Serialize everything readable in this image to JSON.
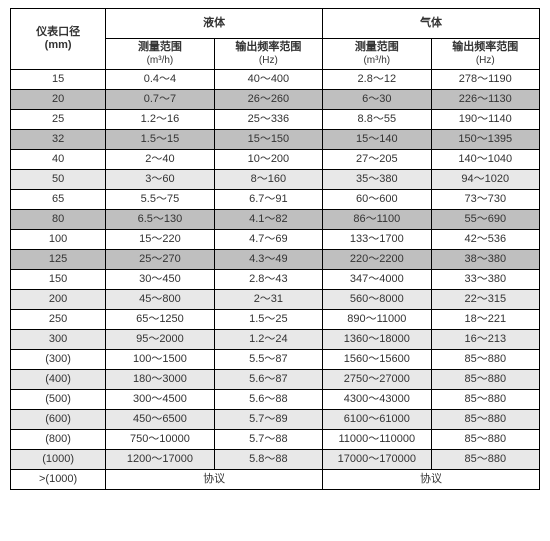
{
  "colors": {
    "bg_white": "#ffffff",
    "bg_light": "#e8e8e8",
    "bg_dark": "#bfbfbf",
    "border": "#000000",
    "text": "#333333"
  },
  "header": {
    "col0_line1": "仪表口径",
    "col0_line2": "(mm)",
    "group_liquid": "液体",
    "group_gas": "气体",
    "meas_line1": "测量范围",
    "meas_line2": "(m³/h)",
    "freq_line1": "输出频率范围",
    "freq_line2": "(Hz)"
  },
  "rows": [
    {
      "dia": "15",
      "lm": "0.4～4",
      "lf": "40～400",
      "gm": "2.8～12",
      "gf": "278～1190",
      "shade": "white"
    },
    {
      "dia": "20",
      "lm": "0.7～7",
      "lf": "26～260",
      "gm": "6～30",
      "gf": "226～1130",
      "shade": "dark"
    },
    {
      "dia": "25",
      "lm": "1.2～16",
      "lf": "25～336",
      "gm": "8.8～55",
      "gf": "190～1140",
      "shade": "white"
    },
    {
      "dia": "32",
      "lm": "1.5～15",
      "lf": "15～150",
      "gm": "15～140",
      "gf": "150～1395",
      "shade": "dark"
    },
    {
      "dia": "40",
      "lm": "2～40",
      "lf": "10～200",
      "gm": "27～205",
      "gf": "140～1040",
      "shade": "white"
    },
    {
      "dia": "50",
      "lm": "3～60",
      "lf": "8～160",
      "gm": "35～380",
      "gf": "94～1020",
      "shade": "light"
    },
    {
      "dia": "65",
      "lm": "5.5～75",
      "lf": "6.7～91",
      "gm": "60～600",
      "gf": "73～730",
      "shade": "white"
    },
    {
      "dia": "80",
      "lm": "6.5～130",
      "lf": "4.1～82",
      "gm": "86～1100",
      "gf": "55～690",
      "shade": "dark"
    },
    {
      "dia": "100",
      "lm": "15～220",
      "lf": "4.7～69",
      "gm": "133～1700",
      "gf": "42～536",
      "shade": "white"
    },
    {
      "dia": "125",
      "lm": "25～270",
      "lf": "4.3～49",
      "gm": "220～2200",
      "gf": "38～380",
      "shade": "dark"
    },
    {
      "dia": "150",
      "lm": "30～450",
      "lf": "2.8～43",
      "gm": "347～4000",
      "gf": "33～380",
      "shade": "white"
    },
    {
      "dia": "200",
      "lm": "45～800",
      "lf": "2～31",
      "gm": "560～8000",
      "gf": "22～315",
      "shade": "light"
    },
    {
      "dia": "250",
      "lm": "65～1250",
      "lf": "1.5～25",
      "gm": "890～11000",
      "gf": "18～221",
      "shade": "white"
    },
    {
      "dia": "300",
      "lm": "95～2000",
      "lf": "1.2～24",
      "gm": "1360～18000",
      "gf": "16～213",
      "shade": "light"
    },
    {
      "dia": "(300)",
      "lm": "100～1500",
      "lf": "5.5～87",
      "gm": "1560～15600",
      "gf": "85～880",
      "shade": "white"
    },
    {
      "dia": "(400)",
      "lm": "180～3000",
      "lf": "5.6～87",
      "gm": "2750～27000",
      "gf": "85～880",
      "shade": "light"
    },
    {
      "dia": "(500)",
      "lm": "300～4500",
      "lf": "5.6～88",
      "gm": "4300～43000",
      "gf": "85～880",
      "shade": "white"
    },
    {
      "dia": "(600)",
      "lm": "450～6500",
      "lf": "5.7～89",
      "gm": "6100～61000",
      "gf": "85～880",
      "shade": "light"
    },
    {
      "dia": "(800)",
      "lm": "750～10000",
      "lf": "5.7～88",
      "gm": "11000～110000",
      "gf": "85～880",
      "shade": "white"
    },
    {
      "dia": "(1000)",
      "lm": "1200～17000",
      "lf": "5.8～88",
      "gm": "17000～170000",
      "gf": "85～880",
      "shade": "light"
    },
    {
      "dia": ">(1000)",
      "lm": "协议",
      "lf": "",
      "gm": "协议",
      "gf": "",
      "shade": "white",
      "merge": true
    }
  ]
}
